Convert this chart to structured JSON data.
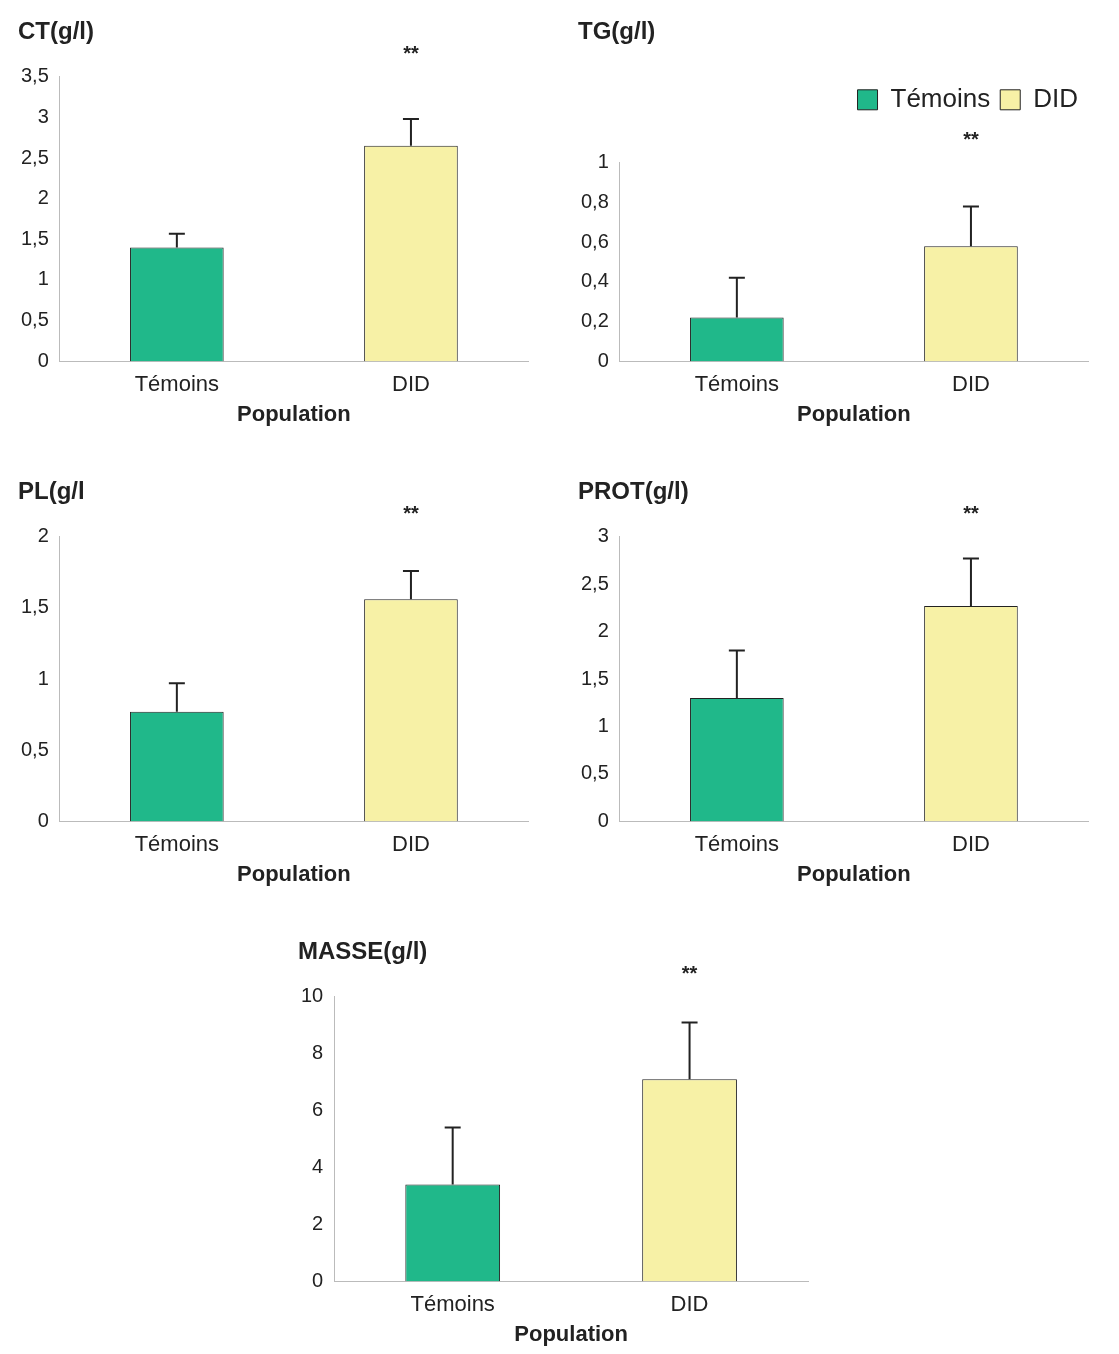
{
  "chart_data": [
    {
      "type": "bar",
      "title": "CT(g/l)",
      "xlabel": "Population",
      "categories": [
        "Témoins",
        "DID"
      ],
      "values": [
        1.4,
        2.65
      ],
      "colors": [
        "#20b88a",
        "#f7f1a6"
      ],
      "errors": [
        [
          1.4,
          1.57
        ],
        [
          2.65,
          2.98
        ]
      ],
      "ylim": [
        0,
        3.5
      ],
      "yticks": [
        0,
        {
          "value": 0.5,
          "label": "0,5"
        },
        1,
        {
          "value": 1.5,
          "label": "1,5"
        },
        2,
        {
          "value": 2.5,
          "label": "2,5"
        },
        3,
        {
          "value": 3.5,
          "label": "3,5"
        }
      ],
      "grid": false,
      "legend": false,
      "annotations": [
        "**"
      ]
    },
    {
      "type": "bar",
      "title": "TG(g/l)",
      "xlabel": "Population",
      "categories": [
        "Témoins",
        "DID"
      ],
      "series": [
        {
          "name": "Témoins",
          "color": "#20b88a",
          "values": [
            0.22,
            null
          ],
          "errors": [
            [
              0.22,
              0.42
            ],
            null
          ]
        },
        {
          "name": "DID",
          "color": "#f7f1a6",
          "values": [
            null,
            0.58
          ],
          "errors": [
            null,
            [
              0.58,
              0.78
            ]
          ]
        }
      ],
      "ylim": [
        0,
        1
      ],
      "yticks": [
        0,
        {
          "value": 0.2,
          "label": "0,2"
        },
        {
          "value": 0.4,
          "label": "0,4"
        },
        {
          "value": 0.6,
          "label": "0,6"
        },
        {
          "value": 0.8,
          "label": "0,8"
        },
        1
      ],
      "grid": false,
      "legend": "top right",
      "annotations": [
        "**"
      ]
    },
    {
      "type": "bar",
      "title": "PL(g/l",
      "xlabel": "Population",
      "categories": [
        "Témoins",
        "DID"
      ],
      "values": [
        0.77,
        1.56
      ],
      "colors": [
        "#20b88a",
        "#f7f1a6"
      ],
      "errors": [
        [
          0.77,
          0.97
        ],
        [
          1.56,
          1.76
        ]
      ],
      "ylim": [
        0,
        2
      ],
      "yticks": [
        0,
        {
          "value": 0.5,
          "label": "0,5"
        },
        1,
        {
          "value": 1.5,
          "label": "1,5"
        },
        2
      ],
      "grid": false,
      "legend": false,
      "annotations": [
        "**"
      ]
    },
    {
      "type": "bar",
      "title": "PROT(g/l)",
      "xlabel": "Population",
      "categories": [
        "Témoins",
        "DID"
      ],
      "values": [
        1.3,
        2.27
      ],
      "colors": [
        "#20b88a",
        "#f7f1a6"
      ],
      "errors": [
        [
          1.3,
          1.8
        ],
        [
          2.27,
          2.77
        ]
      ],
      "ylim": [
        0,
        3
      ],
      "yticks": [
        0,
        {
          "value": 0.5,
          "label": "0,5"
        },
        1,
        {
          "value": 1.5,
          "label": "1,5"
        },
        2,
        {
          "value": 2.5,
          "label": "2,5"
        },
        3
      ],
      "grid": false,
      "legend": false,
      "annotations": [
        "**"
      ]
    },
    {
      "type": "bar",
      "title": "MASSE(g/l)",
      "xlabel": "Population",
      "categories": [
        "Témoins",
        "DID"
      ],
      "values": [
        3.4,
        7.1
      ],
      "colors": [
        "#20b88a",
        "#f7f1a6"
      ],
      "errors": [
        [
          3.4,
          5.4
        ],
        [
          7.1,
          9.1
        ]
      ],
      "ylim": [
        0,
        10
      ],
      "yticks": [
        0,
        2,
        4,
        6,
        8,
        10
      ],
      "grid": false,
      "legend": false,
      "annotations": [
        "**"
      ]
    }
  ]
}
